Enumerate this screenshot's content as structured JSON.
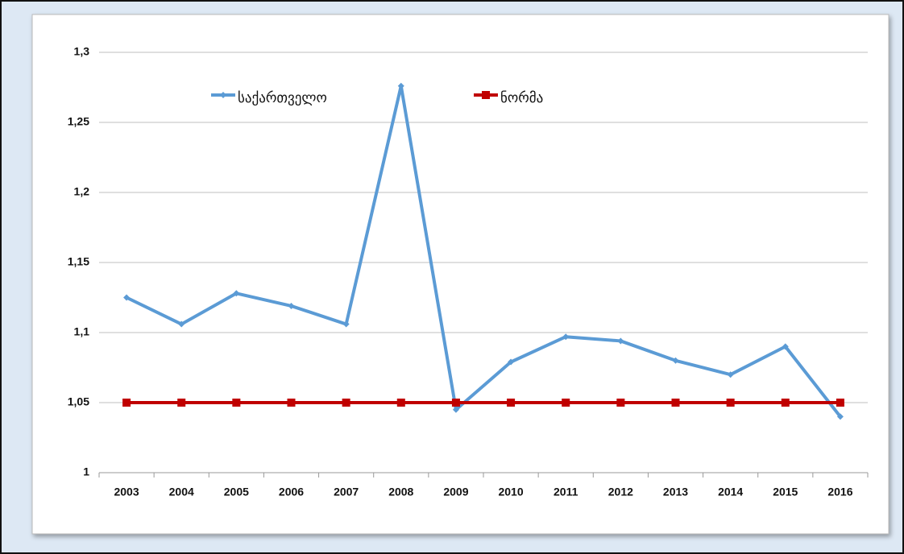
{
  "chart_data": {
    "type": "line",
    "categories": [
      "2003",
      "2004",
      "2005",
      "2006",
      "2007",
      "2008",
      "2009",
      "2010",
      "2011",
      "2012",
      "2013",
      "2014",
      "2015",
      "2016"
    ],
    "series": [
      {
        "name": "საქართველო",
        "color": "#5b9bd5",
        "values": [
          1.125,
          1.106,
          1.128,
          1.119,
          1.106,
          1.276,
          1.045,
          1.079,
          1.097,
          1.094,
          1.08,
          1.07,
          1.09,
          1.04
        ]
      },
      {
        "name": "ნორმა",
        "color": "#c00000",
        "values": [
          1.05,
          1.05,
          1.05,
          1.05,
          1.05,
          1.05,
          1.05,
          1.05,
          1.05,
          1.05,
          1.05,
          1.05,
          1.05,
          1.05
        ]
      }
    ],
    "ylim": [
      1,
      1.3
    ],
    "yticks": [
      1,
      {
        "value": 1.05,
        "label": "1,05"
      },
      {
        "value": 1.1,
        "label": "1,1"
      },
      {
        "value": 1.15,
        "label": "1,15"
      },
      {
        "value": 1.2,
        "label": "1,2"
      },
      {
        "value": 1.25,
        "label": "1,25"
      },
      {
        "value": 1.3,
        "label": "1,3"
      }
    ],
    "grid": true
  }
}
